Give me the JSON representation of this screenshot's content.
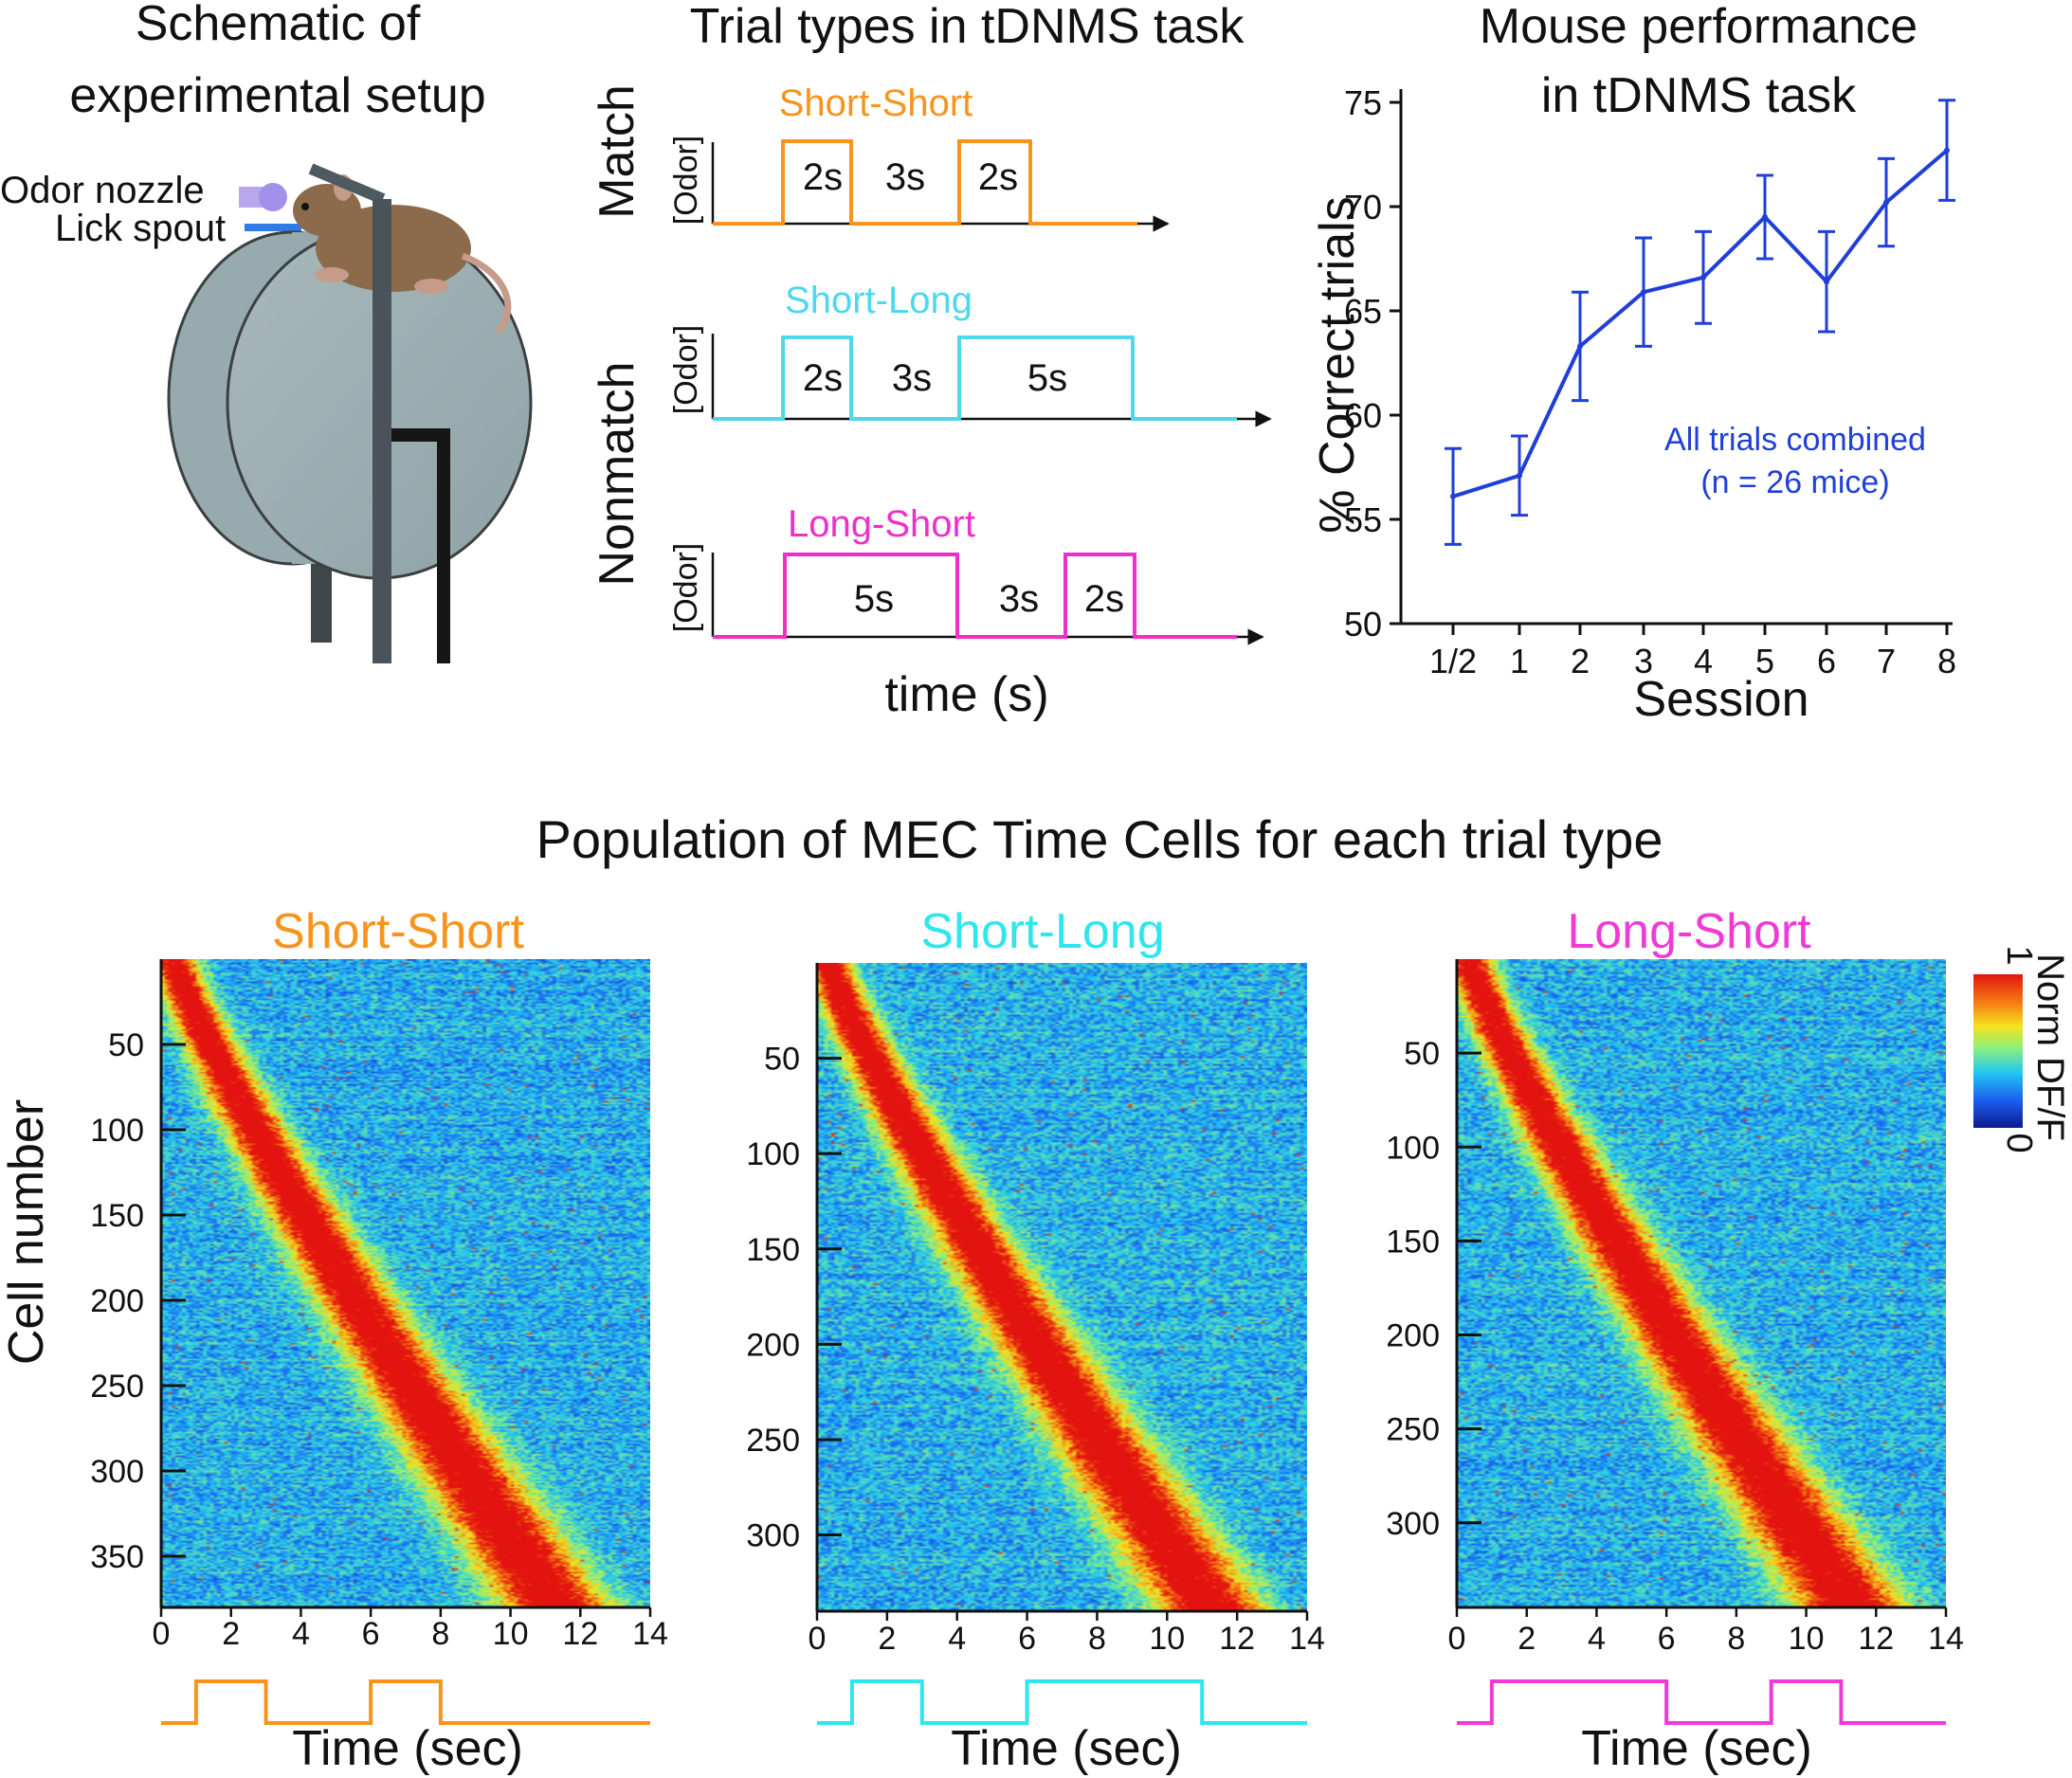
{
  "figure": {
    "main_title": "Population of MEC Time Cells for each trial type"
  },
  "panel_a": {
    "title_line1": "Schematic of",
    "title_line2": "experimental setup",
    "odor_nozzle_label": "Odor nozzle",
    "lick_spout_label": "Lick spout"
  },
  "panel_b": {
    "title": "Trial types in tDNMS task",
    "match_label": "Match",
    "nonmatch_label": "Nonmatch",
    "odor_axis_label": "[Odor]",
    "xlabel": "time (s)",
    "trials": [
      {
        "name": "Short-Short",
        "color": "#f7941d",
        "segments": [
          "2s",
          "3s",
          "2s"
        ],
        "durations": [
          2,
          3,
          2
        ]
      },
      {
        "name": "Short-Long",
        "color": "#4dd8ee",
        "segments": [
          "2s",
          "3s",
          "5s"
        ],
        "durations": [
          2,
          3,
          5
        ]
      },
      {
        "name": "Long-Short",
        "color": "#ee2fc8",
        "segments": [
          "5s",
          "3s",
          "2s"
        ],
        "durations": [
          5,
          3,
          2
        ]
      }
    ]
  },
  "chart_data": [
    {
      "type": "line",
      "title": "Mouse performance in tDNMS task",
      "title_line1": "Mouse performance",
      "title_line2": "in tDNMS task",
      "xlabel": "Session",
      "ylabel": "% Correct trials",
      "categories": [
        "1/2",
        "1",
        "2",
        "3",
        "4",
        "5",
        "6",
        "7",
        "8"
      ],
      "values": [
        56.1,
        57.1,
        63.3,
        65.9,
        66.6,
        69.5,
        66.4,
        70.2,
        72.7
      ],
      "errors": [
        2.3,
        1.9,
        2.6,
        2.6,
        2.2,
        2.0,
        2.4,
        2.1,
        2.4
      ],
      "ylim": [
        50,
        75
      ],
      "yticks": [
        50,
        55,
        60,
        65,
        70,
        75
      ],
      "color": "#1f3fd8",
      "annotation_line1": "All trials combined",
      "annotation_line2": "(n = 26 mice)"
    },
    {
      "type": "heatmap",
      "title": "Short-Short",
      "color": "#f7941d",
      "xlabel": "Time (sec)",
      "ylabel": "Cell number",
      "n_cells": 380,
      "xlim": [
        0,
        14
      ],
      "xticks": [
        0,
        2,
        4,
        6,
        8,
        10,
        12,
        14
      ],
      "yticks": [
        50,
        100,
        150,
        200,
        250,
        300,
        350
      ],
      "trial_segments": [
        2,
        3,
        2
      ]
    },
    {
      "type": "heatmap",
      "title": "Short-Long",
      "color": "#2ee6ee",
      "xlabel": "Time (sec)",
      "n_cells": 340,
      "xlim": [
        0,
        14
      ],
      "xticks": [
        0,
        2,
        4,
        6,
        8,
        10,
        12,
        14
      ],
      "yticks": [
        50,
        100,
        150,
        200,
        250,
        300
      ],
      "trial_segments": [
        2,
        3,
        5
      ]
    },
    {
      "type": "heatmap",
      "title": "Long-Short",
      "color": "#f03ad6",
      "xlabel": "Time (sec)",
      "n_cells": 345,
      "xlim": [
        0,
        14
      ],
      "xticks": [
        0,
        2,
        4,
        6,
        8,
        10,
        12,
        14
      ],
      "yticks": [
        50,
        100,
        150,
        200,
        250,
        300
      ],
      "trial_segments": [
        5,
        3,
        2
      ]
    }
  ],
  "colorbar": {
    "label": "Norm DF/F",
    "max_label": "1",
    "min_label": "0",
    "colors": [
      "#0b1a8f",
      "#1b5ff0",
      "#22c8f0",
      "#8cf07a",
      "#f6e21e",
      "#f57a14",
      "#e3140f"
    ]
  }
}
